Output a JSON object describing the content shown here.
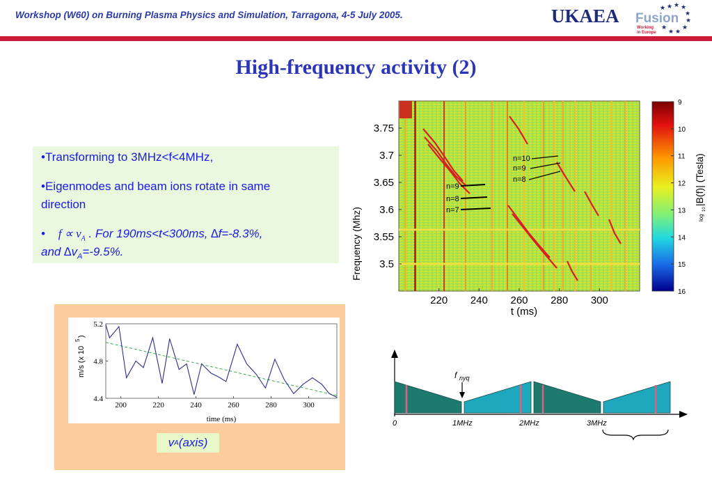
{
  "header": {
    "title": "Workshop (W60) on Burning Plasma Physics and Simulation, Tarragona, 4-5 July 2005.",
    "logo_main": "UKAEA",
    "logo_fusion": "Fusion",
    "logo_sub1": "Working",
    "logo_sub2": "in Europe",
    "accent": "#cc1a3a",
    "brand_color": "#2a3aa8"
  },
  "slide_title": "High-frequency activity (2)",
  "bullets": {
    "b1": "•Transforming to  3MHz<f<4MHz,",
    "b2a": "•Eigenmodes and beam ions rotate in same",
    "b2b": "direction",
    "b3_prefix": "•",
    "b3_formula_f": "f",
    "b3_formula_prop": "∝",
    "b3_formula_v": "v",
    "b3_formula_sub": "A",
    "b3_text": ". For 190ms<t<300ms, ∆f=-8.3%,",
    "b3_line2_a": "and ∆v",
    "b3_line2_sub": "A",
    "b3_line2_b": "=-9.5%."
  },
  "va_caption": {
    "v": "v",
    "sub": "A",
    "rest": " (axis)"
  },
  "chart_data": [
    {
      "type": "heatmap",
      "title": "",
      "xlabel": "t (ms)",
      "ylabel": "Frequency (Mhz)",
      "xlim": [
        200,
        320
      ],
      "ylim": [
        3.45,
        3.8
      ],
      "xticks": [
        "220",
        "240",
        "260",
        "280",
        "300"
      ],
      "xtick_values": [
        220,
        240,
        260,
        280,
        300
      ],
      "yticks": [
        "3.75",
        "3.7",
        "3.65",
        "3.6",
        "3.55",
        "3.5"
      ],
      "ytick_values": [
        3.75,
        3.7,
        3.65,
        3.6,
        3.55,
        3.5
      ],
      "colorbar": {
        "label": "log10|B(f)| (Tesla)",
        "label_main": "|B(f)| (Tesla)",
        "label_log": "log",
        "label_sub": "10",
        "ticks": [
          "9",
          "10",
          "11",
          "12",
          "13",
          "14",
          "15",
          "16"
        ]
      },
      "annotations": {
        "left_group": [
          "n=9",
          "n=8",
          "n=7"
        ],
        "right_group": [
          "n=10",
          "n=9",
          "n=8"
        ]
      }
    },
    {
      "type": "line",
      "title": "",
      "xlabel": "time (ms)",
      "ylabel": "m/s (x 10",
      "ylabel_exp": "5",
      "ylabel_close": ")",
      "xlim": [
        192,
        315
      ],
      "ylim": [
        4.4,
        5.2
      ],
      "xticks": [
        "200",
        "220",
        "240",
        "260",
        "280",
        "300"
      ],
      "xtick_values": [
        200,
        220,
        240,
        260,
        280,
        300
      ],
      "yticks": [
        "5.2",
        "4.8",
        "4.4"
      ],
      "ytick_values": [
        5.2,
        4.8,
        4.4
      ],
      "series": [
        {
          "x": [
            192,
            194,
            199,
            203,
            208,
            212,
            217,
            222,
            226,
            231,
            235,
            239,
            243,
            248,
            252,
            256,
            262,
            267,
            272,
            277,
            282,
            287,
            292,
            297,
            302,
            307,
            311,
            315
          ],
          "values": [
            5.19,
            5.05,
            5.17,
            4.62,
            4.8,
            4.73,
            5.05,
            4.56,
            5.04,
            4.71,
            4.77,
            4.44,
            4.77,
            4.67,
            4.63,
            4.58,
            4.98,
            4.77,
            4.66,
            4.51,
            4.82,
            4.6,
            4.45,
            4.55,
            4.62,
            4.55,
            4.45,
            4.41
          ],
          "color": "#2c2c8c"
        },
        {
          "x": [
            192,
            315
          ],
          "values": [
            5.0,
            4.43
          ],
          "color": "#3aaa4a",
          "style": "dashed"
        }
      ]
    },
    {
      "type": "diagram",
      "title": "",
      "axis_labels": [
        "0",
        "1MHz",
        "2MHz",
        "3MHz"
      ],
      "marker": {
        "f": "f",
        "sub": "nyq"
      }
    }
  ]
}
